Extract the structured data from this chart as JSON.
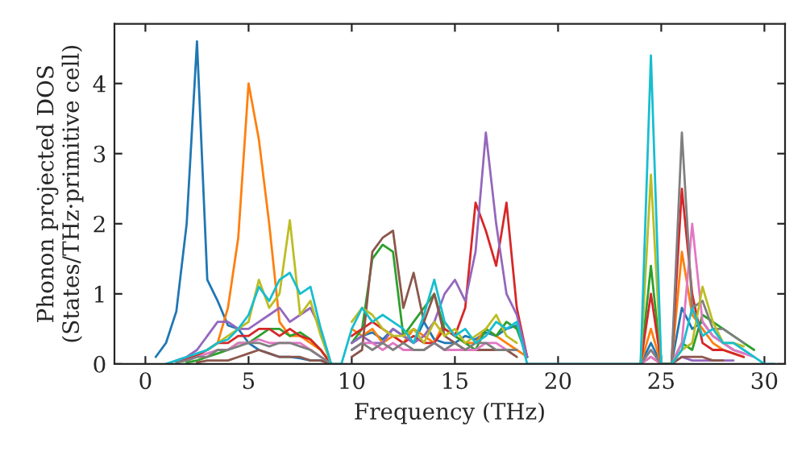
{
  "chart_data": {
    "type": "line",
    "xlabel": "Frequency (THz)",
    "ylabel": "Phonon projected DOS\n(States/THz·primitive cell)",
    "xlim": [
      -1.5,
      31
    ],
    "ylim": [
      0,
      4.85
    ],
    "xticks": [
      0,
      5,
      10,
      15,
      20,
      25,
      30
    ],
    "yticks": [
      0,
      1,
      2,
      3,
      4
    ],
    "grid": false,
    "marker": "none",
    "line_style": "solid",
    "x": [
      0.5,
      1,
      1.5,
      2,
      2.5,
      3,
      3.5,
      4,
      4.5,
      5,
      5.5,
      6,
      6.5,
      7,
      7.5,
      8,
      8.5,
      9,
      9.5,
      10,
      10.5,
      11,
      11.5,
      12,
      12.5,
      13,
      13.5,
      14,
      14.5,
      15,
      15.5,
      16,
      16.5,
      17,
      17.5,
      18,
      18.5,
      19,
      19.5,
      20,
      20.5,
      21,
      21.5,
      22,
      22.5,
      23,
      23.5,
      24,
      24.5,
      25,
      25.5,
      26,
      26.5,
      27,
      27.5,
      28,
      28.5,
      29,
      29.5,
      30,
      30.5
    ],
    "series": [
      {
        "color": "#1f77b4",
        "values": [
          0.1,
          0.3,
          0.75,
          2.0,
          4.6,
          1.2,
          0.9,
          0.55,
          0.5,
          0.3,
          0.2,
          0.15,
          0.1,
          0.1,
          0.08,
          0.05,
          0.05,
          0,
          null,
          0.3,
          0.4,
          0.45,
          0.35,
          0.5,
          0.4,
          0.3,
          0.6,
          0.35,
          0.3,
          0.3,
          0.4,
          0.35,
          0.45,
          0.4,
          0.5,
          0.55,
          0.1,
          null,
          null,
          null,
          null,
          null,
          null,
          null,
          null,
          null,
          null,
          0,
          0.3,
          0,
          0,
          0.8,
          0.5,
          0.6,
          0.4,
          0.3,
          0.2,
          0.15,
          null,
          null,
          null
        ]
      },
      {
        "color": "#ff7f0e",
        "values": [
          null,
          null,
          null,
          null,
          null,
          0.2,
          0.3,
          0.8,
          1.8,
          4.0,
          3.2,
          2.0,
          0.6,
          0.4,
          0.4,
          0.3,
          0.2,
          0,
          null,
          0.5,
          0.4,
          0.5,
          0.3,
          0.4,
          0.3,
          0.5,
          0.4,
          0.3,
          0.6,
          0.4,
          0.3,
          0.3,
          0.5,
          0.4,
          0.3,
          0.2,
          0.1,
          null,
          null,
          null,
          null,
          null,
          null,
          null,
          null,
          null,
          null,
          0,
          0.5,
          0,
          0,
          1.6,
          0.7,
          0.5,
          0.3,
          0.2,
          0.15,
          0.1,
          null,
          null,
          null
        ]
      },
      {
        "color": "#2ca02c",
        "values": [
          null,
          null,
          null,
          0.02,
          0.05,
          0.1,
          0.15,
          0.2,
          0.3,
          0.3,
          0.4,
          0.5,
          0.5,
          0.4,
          0.45,
          0.35,
          0.2,
          0,
          null,
          0.3,
          0.5,
          1.5,
          1.7,
          1.6,
          0.4,
          0.6,
          0.8,
          1.0,
          0.5,
          0.4,
          0.3,
          0.2,
          0.5,
          0.4,
          0.6,
          0.5,
          0.1,
          null,
          null,
          null,
          null,
          null,
          null,
          null,
          null,
          null,
          null,
          0,
          1.4,
          0,
          0,
          0.3,
          0.2,
          0.7,
          0.6,
          0.5,
          0.4,
          0.3,
          0.2,
          null,
          null
        ]
      },
      {
        "color": "#d62728",
        "values": [
          null,
          null,
          0.03,
          0.08,
          0.12,
          0.2,
          0.3,
          0.3,
          0.4,
          0.4,
          0.5,
          0.5,
          0.4,
          0.5,
          0.4,
          0.35,
          0.2,
          0,
          null,
          0.4,
          0.5,
          0.6,
          0.5,
          0.4,
          0.3,
          0.4,
          0.3,
          0.3,
          0.5,
          0.4,
          0.8,
          2.3,
          1.9,
          1.4,
          2.3,
          0.8,
          0.1,
          null,
          null,
          null,
          null,
          null,
          null,
          null,
          null,
          null,
          null,
          0,
          1.0,
          0,
          0,
          2.5,
          1.0,
          0.3,
          0.2,
          0.2,
          0.15,
          0.1,
          null,
          null,
          null
        ]
      },
      {
        "color": "#9467bd",
        "values": [
          null,
          null,
          0.05,
          0.1,
          0.2,
          0.4,
          0.6,
          0.6,
          0.5,
          0.5,
          0.6,
          0.7,
          0.8,
          0.6,
          0.7,
          0.8,
          0.5,
          0,
          null,
          0.3,
          0.4,
          0.3,
          0.3,
          0.5,
          0.4,
          0.3,
          0.4,
          0.6,
          1.0,
          1.2,
          0.9,
          1.6,
          3.3,
          2.0,
          1.0,
          0.7,
          0.1,
          null,
          null,
          null,
          null,
          null,
          null,
          null,
          null,
          null,
          null,
          0,
          0.2,
          0,
          0,
          0.1,
          0.05,
          0.05,
          0.05,
          0.05,
          0.05,
          null,
          null,
          null,
          null
        ]
      },
      {
        "color": "#8c564b",
        "values": [
          null,
          null,
          null,
          null,
          0.02,
          0.05,
          0.05,
          0.05,
          0.1,
          0.15,
          0.2,
          0.15,
          0.1,
          0.1,
          0.1,
          0.05,
          0.05,
          0,
          null,
          0.1,
          0.2,
          1.6,
          1.8,
          1.9,
          0.8,
          1.3,
          0.6,
          1.0,
          0.4,
          0.3,
          0.2,
          0.2,
          0.2,
          0.2,
          0.2,
          0.1,
          null,
          null,
          null,
          null,
          null,
          null,
          null,
          null,
          null,
          null,
          null,
          0,
          0.1,
          0,
          0,
          0.1,
          0.1,
          0.1,
          0.05,
          0.05,
          null,
          null,
          null,
          null,
          null
        ]
      },
      {
        "color": "#e377c2",
        "values": [
          null,
          null,
          null,
          0.05,
          0.1,
          0.15,
          0.2,
          0.2,
          0.3,
          0.3,
          0.35,
          0.3,
          0.3,
          0.3,
          0.3,
          0.2,
          0.1,
          0,
          null,
          0.2,
          0.3,
          0.3,
          0.2,
          0.3,
          0.2,
          0.2,
          0.2,
          0.3,
          0.2,
          0.2,
          0.2,
          0.2,
          0.3,
          0.3,
          0.2,
          0.2,
          null,
          null,
          null,
          null,
          null,
          null,
          null,
          null,
          null,
          null,
          null,
          0,
          0.1,
          0,
          0,
          0.3,
          2.0,
          0.6,
          0.4,
          0.3,
          0.2,
          0.15,
          0.1,
          null,
          null
        ]
      },
      {
        "color": "#7f7f7f",
        "values": [
          null,
          null,
          0.02,
          0.05,
          0.1,
          0.1,
          0.2,
          0.2,
          0.25,
          0.3,
          0.3,
          0.25,
          0.3,
          0.3,
          0.25,
          0.2,
          0.1,
          0,
          null,
          0.2,
          0.3,
          0.2,
          0.3,
          0.2,
          0.3,
          0.2,
          0.2,
          0.3,
          0.2,
          0.3,
          0.2,
          0.3,
          0.3,
          0.2,
          0.2,
          0.2,
          null,
          null,
          null,
          null,
          null,
          null,
          null,
          null,
          null,
          null,
          null,
          0,
          0.2,
          0,
          0,
          3.3,
          0.8,
          0.9,
          0.5,
          0.5,
          0.4,
          0.3,
          null,
          null,
          null
        ]
      },
      {
        "color": "#bcbd22",
        "values": [
          null,
          null,
          null,
          null,
          null,
          0.2,
          0.3,
          0.4,
          0.5,
          0.6,
          1.2,
          0.8,
          1.0,
          2.05,
          0.7,
          0.9,
          0.4,
          0,
          null,
          0.6,
          0.8,
          0.7,
          0.5,
          0.4,
          0.4,
          0.5,
          0.3,
          0.6,
          0.4,
          0.5,
          0.3,
          0.4,
          0.5,
          0.7,
          0.4,
          0.3,
          null,
          null,
          null,
          null,
          null,
          null,
          null,
          null,
          null,
          null,
          null,
          0,
          2.7,
          0,
          0,
          0.2,
          0.3,
          1.1,
          0.6,
          0.3,
          0.3,
          0.25,
          null,
          null,
          null
        ]
      },
      {
        "color": "#17becf",
        "values": [
          null,
          0,
          0.05,
          0.1,
          0.15,
          0.2,
          0.3,
          0.35,
          0.5,
          0.7,
          1.1,
          0.9,
          1.2,
          1.3,
          1.0,
          1.1,
          0.5,
          0,
          0,
          0.5,
          0.8,
          0.6,
          0.7,
          0.6,
          0.5,
          0.3,
          0.7,
          1.2,
          0.6,
          0.4,
          0.5,
          0.3,
          0.4,
          0.6,
          0.5,
          0.6,
          0,
          0,
          0,
          0,
          0,
          0,
          0,
          0,
          0,
          0,
          0,
          0,
          4.4,
          0,
          0,
          0.2,
          0.8,
          0.4,
          0.5,
          0.3,
          0.3,
          0.2,
          0.1,
          0,
          0
        ]
      }
    ]
  }
}
